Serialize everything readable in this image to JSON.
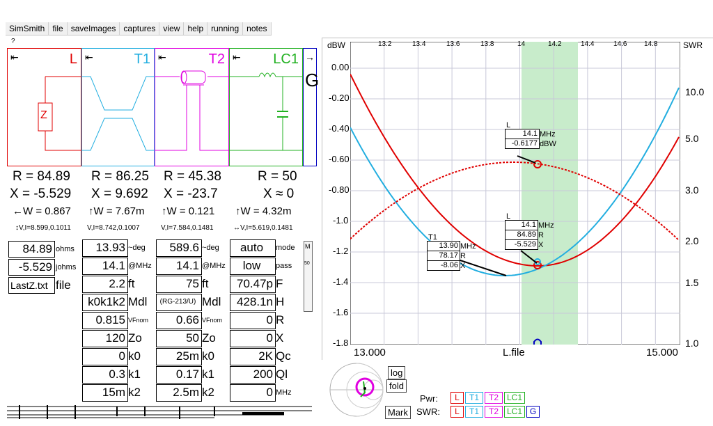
{
  "menu": [
    "SimSmith",
    "file",
    "saveImages",
    "captures",
    "view",
    "help",
    "running",
    "notes"
  ],
  "help_mark": "?",
  "elements": [
    {
      "name": "L",
      "color": "#e00000",
      "arrow": "⇤"
    },
    {
      "name": "T1",
      "color": "#22aee0",
      "arrow": "⇤"
    },
    {
      "name": "T2",
      "color": "#e000e0",
      "arrow": "⇤"
    },
    {
      "name": "LC1",
      "color": "#20b020",
      "arrow": "⇤"
    },
    {
      "name": "G",
      "color": "#0000c0",
      "arrow": "→"
    }
  ],
  "z_label": "Z",
  "readouts": [
    {
      "r": "R = 84.89",
      "x": "X = -5.529",
      "w": "←W = 0.867",
      "vi": "↕V,I=8.599,0.1011"
    },
    {
      "r": "R = 86.25",
      "x": "X = 9.692",
      "w": "↑W = 7.67m",
      "vi": "V,I=8.742,0.1007"
    },
    {
      "r": "R = 45.38",
      "x": "X = -23.7",
      "w": "↑W = 0.121",
      "vi": "V,I=7.584,0.1481"
    },
    {
      "r": "R = 50",
      "x": "X ≈ 0",
      "w": "↑W = 4.32m",
      "vi": "↔V,I=5.619,0.1481"
    }
  ],
  "load_panel": {
    "r_value": "84.89",
    "r_unit": "ohms",
    "x_value": "-5.529",
    "x_unit": "johms",
    "file_value": "LastZ.txt",
    "file_unit": "file"
  },
  "t1_panel": [
    {
      "v": "13.93",
      "u": "~deg"
    },
    {
      "v": "14.1",
      "u": "@MHz"
    },
    {
      "v": "2.2",
      "u": "ft"
    },
    {
      "v": "k0k1k2",
      "u": "Mdl"
    },
    {
      "v": "0.815",
      "u": "VFnom"
    },
    {
      "v": "120",
      "u": "Zo"
    },
    {
      "v": "0",
      "u": "k0"
    },
    {
      "v": "0.3",
      "u": "k1"
    },
    {
      "v": "15m",
      "u": "k2"
    }
  ],
  "t2_panel": [
    {
      "v": "589.6",
      "u": "~deg"
    },
    {
      "v": "14.1",
      "u": "@MHz"
    },
    {
      "v": "75",
      "u": "ft"
    },
    {
      "v": "(RG-213/U)",
      "u": "Mdl"
    },
    {
      "v": "0.66",
      "u": "VFnom"
    },
    {
      "v": "50",
      "u": "Zo"
    },
    {
      "v": "25m",
      "u": "k0"
    },
    {
      "v": "0.17",
      "u": "k1"
    },
    {
      "v": "2.5m",
      "u": "k2"
    }
  ],
  "lc1_panel": [
    {
      "v": "auto",
      "u": "mode"
    },
    {
      "v": "low",
      "u": "pass"
    },
    {
      "v": "70.47p",
      "u": "F"
    },
    {
      "v": "428.1n",
      "u": "H"
    },
    {
      "v": "0",
      "u": "R"
    },
    {
      "v": "0",
      "u": "X"
    },
    {
      "v": "2K",
      "u": "Qc"
    },
    {
      "v": "200",
      "u": "Ql"
    },
    {
      "v": "0",
      "u": "MHz"
    }
  ],
  "side_marks": [
    "M",
    "50"
  ],
  "chart": {
    "y_unit": "dBW",
    "y_ticks": [
      "0.00",
      "-0.20",
      "-0.40",
      "-0.60",
      "-0.80",
      "-1.0",
      "-1.2",
      "-1.4",
      "-1.6",
      "-1.8"
    ],
    "top_ticks": [
      "13.2",
      "13.4",
      "13.6",
      "13.8",
      "14",
      "14.2",
      "14.4",
      "14.6",
      "14.8"
    ],
    "swr_label": "SWR",
    "swr_ticks": [
      "10.0",
      "5.0",
      "3.0",
      "2.0",
      "1.5",
      "1.0"
    ],
    "x_start": "13.000",
    "x_label": "L.file",
    "x_end": "15.000",
    "tip_l_pwr": {
      "title": "L",
      "rows": [
        {
          "v": "14.1",
          "u": "MHz"
        },
        {
          "v": "-0.6177",
          "u": "dBW"
        }
      ]
    },
    "tip_l_swr": {
      "title": "L",
      "rows": [
        {
          "v": "14.1",
          "u": "MHz"
        },
        {
          "v": "84.89",
          "u": "R"
        },
        {
          "v": "-5.529",
          "u": "X"
        }
      ]
    },
    "tip_t1": {
      "title": "T1",
      "rows": [
        {
          "v": "13.90",
          "u": "MHz"
        },
        {
          "v": "78.17",
          "u": "R"
        },
        {
          "v": "-8.06",
          "u": "X"
        }
      ]
    }
  },
  "buttons": {
    "log": "log",
    "fold": "fold",
    "mark": "Mark"
  },
  "pwr_label": "Pwr:",
  "swr_label": "SWR:",
  "legend_pwr": [
    {
      "t": "L",
      "c": "#e00000"
    },
    {
      "t": "T1",
      "c": "#22aee0"
    },
    {
      "t": "T2",
      "c": "#e000e0"
    },
    {
      "t": "LC1",
      "c": "#20b020"
    }
  ],
  "legend_swr": [
    {
      "t": "L",
      "c": "#e00000"
    },
    {
      "t": "T1",
      "c": "#22aee0"
    },
    {
      "t": "T2",
      "c": "#e000e0"
    },
    {
      "t": "LC1",
      "c": "#20b020"
    },
    {
      "t": "G",
      "c": "#0000c0"
    }
  ]
}
